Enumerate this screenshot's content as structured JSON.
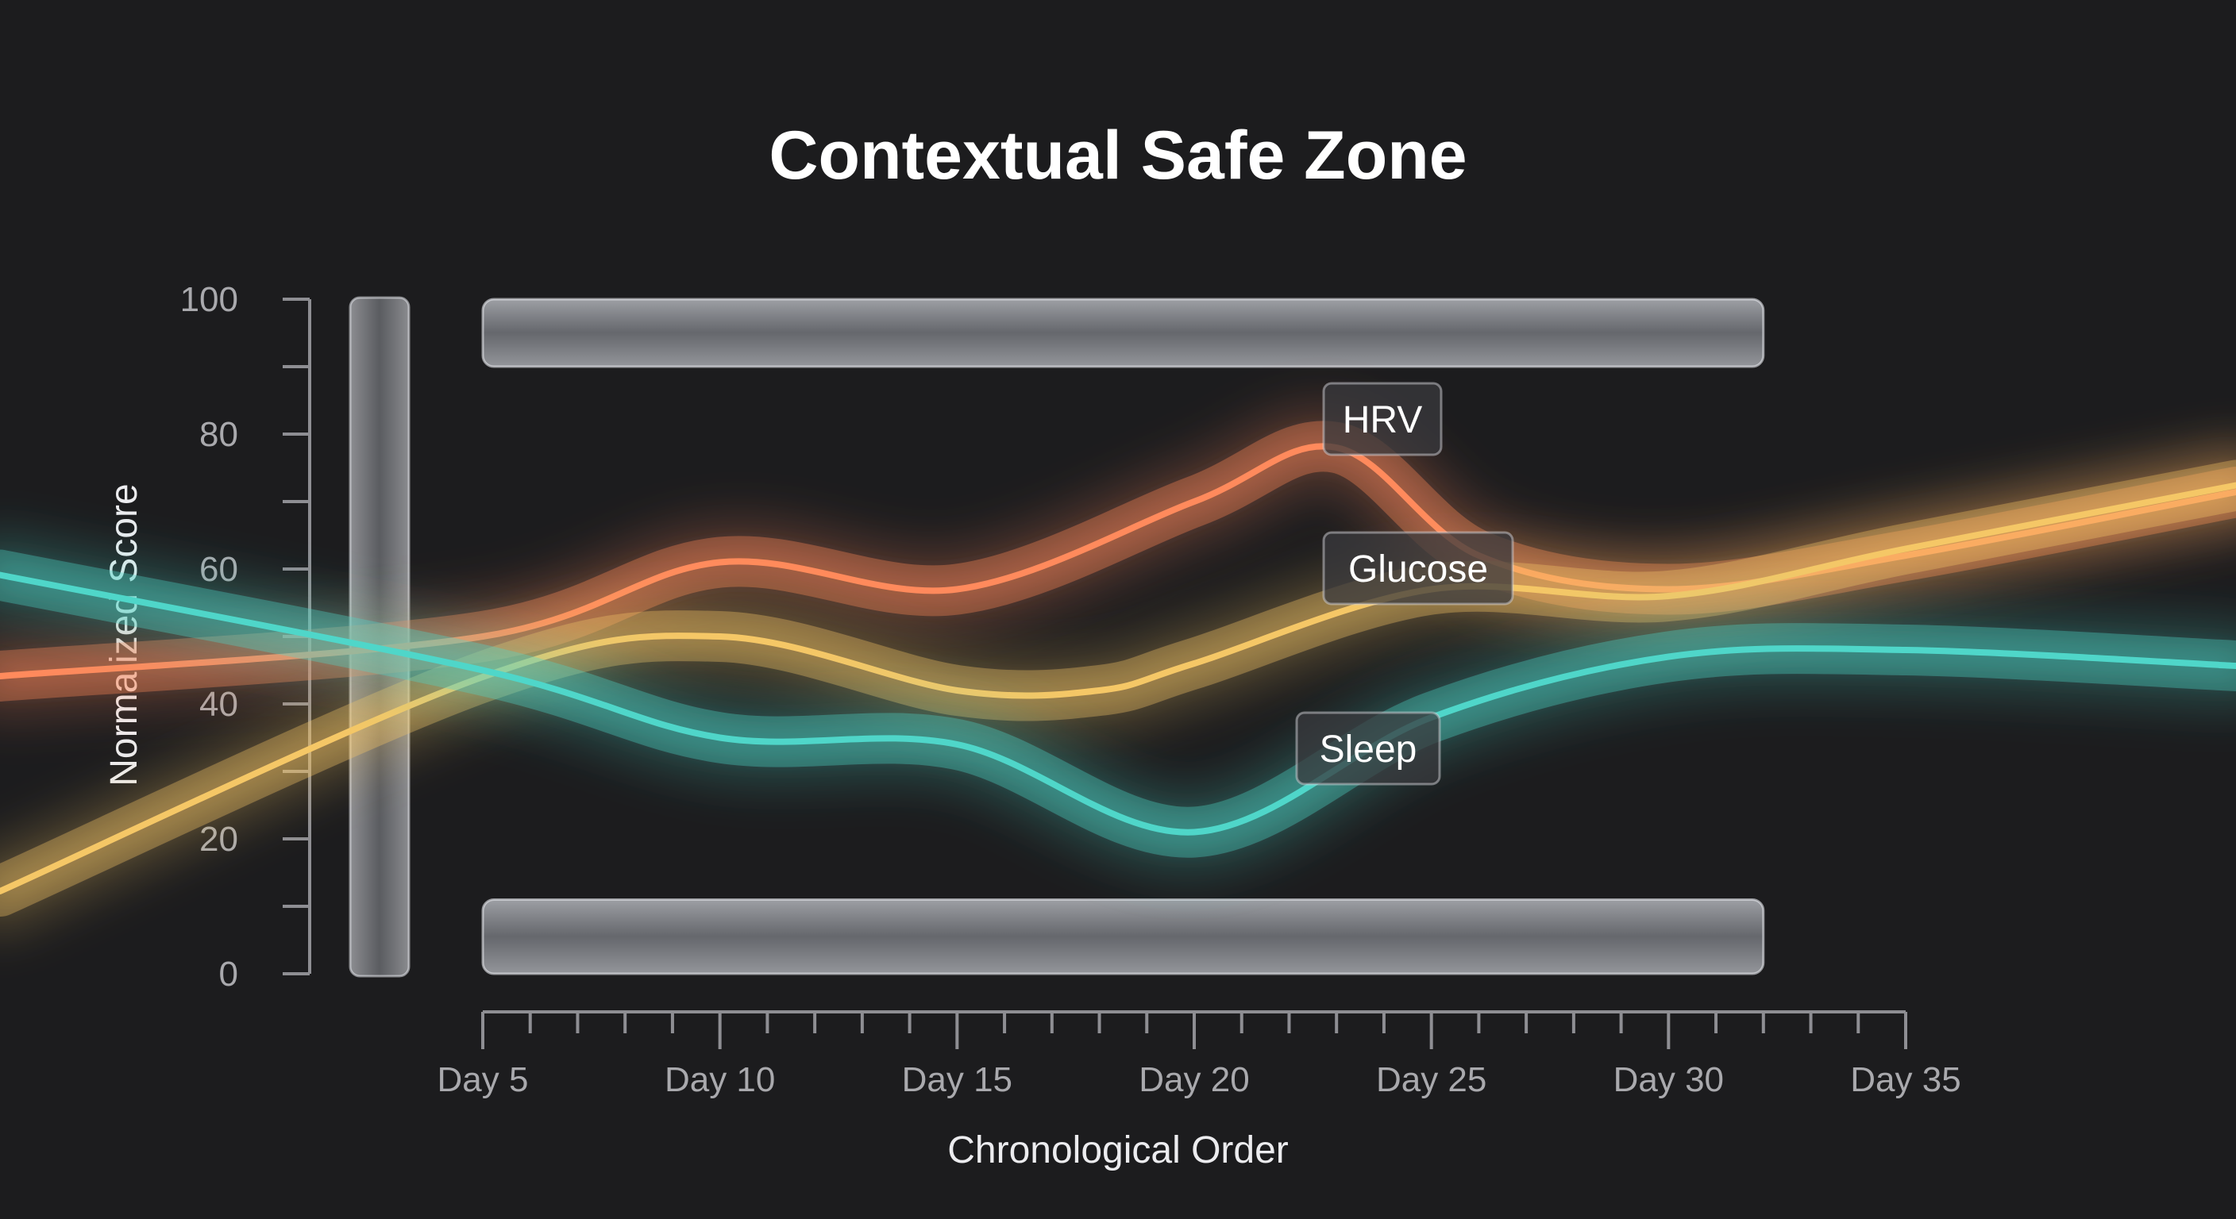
{
  "chart_data": {
    "type": "line",
    "title": "Contextual Safe Zone",
    "xlabel": "Chronological Order",
    "ylabel": "Normalized Score",
    "ylim": [
      0,
      100
    ],
    "yticks": [
      0,
      20,
      40,
      60,
      80,
      100
    ],
    "xlim": [
      5,
      35
    ],
    "xticks": [
      5,
      10,
      15,
      20,
      25,
      30,
      35
    ],
    "xtick_labels": [
      "Day 5",
      "Day 10",
      "Day 15",
      "Day 20",
      "Day 25",
      "Day 30",
      "Day 35"
    ],
    "safe_zone_bands": [
      {
        "y_from": 90,
        "y_to": 100,
        "x_from": 5,
        "x_to": 32
      },
      {
        "y_from": 0,
        "y_to": 11,
        "x_from": 5,
        "x_to": 32
      }
    ],
    "series": [
      {
        "name": "HRV",
        "color": "#ff8a5c",
        "x": [
          5,
          10,
          15,
          20,
          23,
          26,
          30,
          35
        ],
        "values": [
          50,
          61,
          57,
          70,
          78,
          62,
          57,
          62
        ]
      },
      {
        "name": "Glucose",
        "color": "#f5c766",
        "x": [
          5,
          10,
          15,
          18,
          20,
          25,
          30,
          35
        ],
        "values": [
          44,
          50,
          42,
          42,
          46,
          57,
          56,
          63
        ]
      },
      {
        "name": "Sleep",
        "color": "#4fd6c9",
        "x": [
          5,
          10,
          15,
          20,
          25,
          30,
          35
        ],
        "values": [
          45,
          35,
          34,
          21,
          38,
          47,
          48
        ]
      }
    ]
  }
}
